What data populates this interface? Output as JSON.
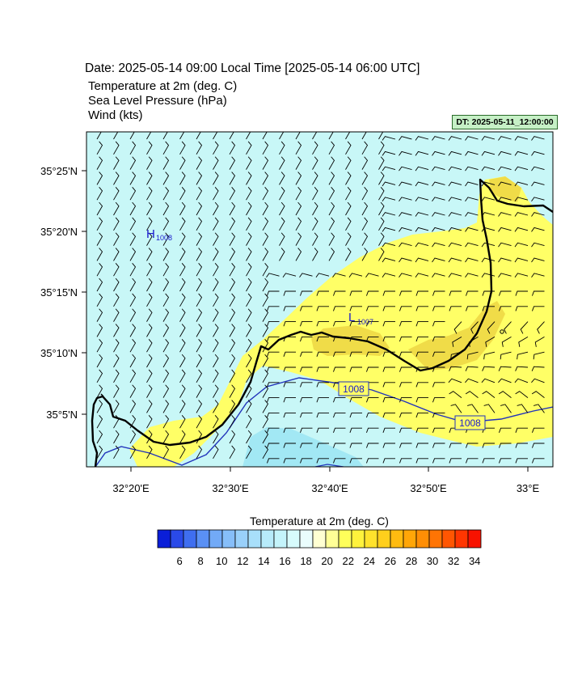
{
  "header": {
    "date_line": "Date: 2025-05-14  09:00 Local Time [2025-05-14  06:00 UTC]",
    "fields": [
      "Temperature at 2m   (deg. C)",
      "Sea Level Pressure   (hPa)",
      "Wind   (kts)"
    ],
    "dt_badge": "DT: 2025-05-11_12:00:00"
  },
  "map": {
    "lat_labels": [
      "35°25'N",
      "35°20'N",
      "35°15'N",
      "35°10'N",
      "35°5'N"
    ],
    "lon_labels": [
      "32°20'E",
      "32°30'E",
      "32°40'E",
      "32°50'E",
      "33°E"
    ],
    "pressure_centers": [
      {
        "label": "H",
        "value": "1008",
        "color": "#1a1acc"
      },
      {
        "label": "L",
        "value": "1007",
        "color": "#1a1acc"
      }
    ],
    "isobar_labels": [
      "1008",
      "1008"
    ],
    "colors": {
      "sea_temp": "#c8f7f7",
      "warm_land": "#ffff66",
      "warmer": "#f5e04a",
      "cool_patch": "#9fe6f2",
      "isobar": "#2233bb",
      "coastline": "#000000"
    }
  },
  "colorbar": {
    "title": "Temperature at 2m  (deg. C)",
    "tick_labels": [
      "6",
      "8",
      "10",
      "12",
      "14",
      "16",
      "18",
      "20",
      "22",
      "24",
      "26",
      "28",
      "30",
      "32",
      "34"
    ],
    "colors": [
      "#0a1ed8",
      "#2a4ae8",
      "#3f6ef0",
      "#5a90f5",
      "#72aaf7",
      "#86bef9",
      "#99d0fa",
      "#a8dffa",
      "#b7ebfa",
      "#c4f4fb",
      "#d7fbfc",
      "#eafdfd",
      "#ffffd2",
      "#ffff96",
      "#ffff5a",
      "#fff23c",
      "#ffe22c",
      "#ffcf1c",
      "#ffbb10",
      "#ffa608",
      "#ff8e05",
      "#ff7404",
      "#ff5602",
      "#ff3601",
      "#f81200"
    ]
  }
}
